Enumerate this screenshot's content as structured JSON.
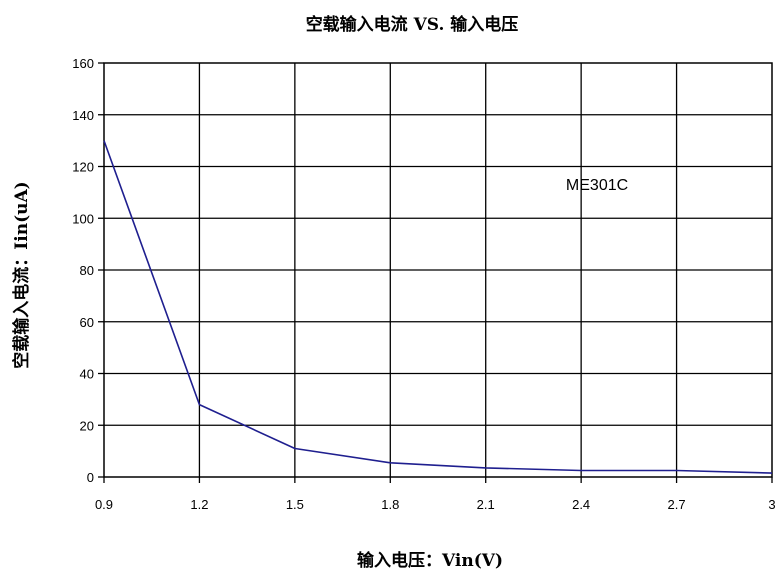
{
  "chart_data": {
    "type": "line",
    "title": "空载输入电流 VS. 输入电压",
    "xlabel": "输入电压：Vin(V)",
    "ylabel": "空载输入电流：Iin(uA)",
    "xlim": [
      0.9,
      3.0
    ],
    "ylim": [
      0,
      160
    ],
    "x_ticks": [
      0.9,
      1.2,
      1.5,
      1.8,
      2.1,
      2.4,
      2.7,
      3.0
    ],
    "x_tick_labels": [
      "0.9",
      "1.2",
      "1.5",
      "1.8",
      "2.1",
      "2.4",
      "2.7",
      "3"
    ],
    "y_ticks": [
      0,
      20,
      40,
      60,
      80,
      100,
      120,
      140,
      160
    ],
    "y_tick_labels": [
      "0",
      "20",
      "40",
      "60",
      "80",
      "100",
      "120",
      "140",
      "160"
    ],
    "grid": true,
    "legend": "none",
    "series": [
      {
        "name": "ME301C",
        "color": "#1f1f8f",
        "x": [
          0.9,
          1.2,
          1.5,
          1.8,
          2.1,
          2.4,
          2.7,
          3.0
        ],
        "y": [
          130,
          28,
          11,
          5.5,
          3.5,
          2.5,
          2.5,
          1.5
        ]
      }
    ],
    "annotations": [
      {
        "text": "ME301C",
        "x": 2.45,
        "y": 111
      }
    ]
  }
}
